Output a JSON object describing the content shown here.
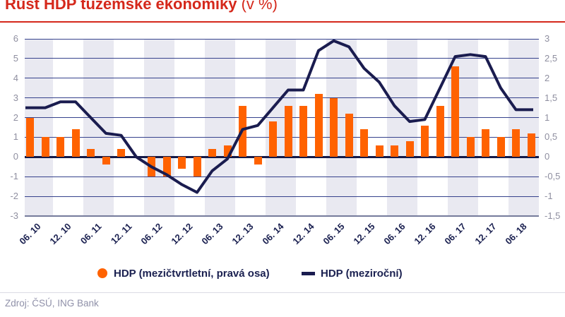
{
  "title": {
    "main": "Růst HDP tuzemské ekonomiky",
    "suffix": " (v %)"
  },
  "source_text": "Zdroj: ČSÚ, ING Bank",
  "legend": {
    "qoq_label": "HDP (mezičtvrtletní, pravá osa)",
    "yoy_label": "HDP (meziroční)"
  },
  "colors": {
    "title_red": "#d5281b",
    "bar_orange": "#ff6200",
    "line_navy": "#1a1c4f",
    "gridline": "#36428c",
    "zero_line": "#141947",
    "bottom_axis": "#757b9b",
    "stripe": "#e9e9f1",
    "tick_text": "#8f8fa0",
    "label_navy": "#1a2050",
    "source_text": "#9091a9",
    "separator": "#dcdce4"
  },
  "chart_data": {
    "type": "bar+line combo, dual axis",
    "periods": [
      "06.10",
      "09.10",
      "12.10",
      "03.11",
      "06.11",
      "09.11",
      "12.11",
      "03.12",
      "06.12",
      "09.12",
      "12.12",
      "03.13",
      "06.13",
      "09.13",
      "12.13",
      "03.14",
      "06.14",
      "09.14",
      "12.14",
      "03.15",
      "06.15",
      "09.15",
      "12.15",
      "03.16",
      "06.16",
      "09.16",
      "12.16",
      "03.17",
      "06.17",
      "09.17",
      "12.17",
      "03.18",
      "06.18",
      "09.18"
    ],
    "x_labels": [
      "06. 10",
      "12. 10",
      "06. 11",
      "12. 11",
      "06. 12",
      "12. 12",
      "06. 13",
      "12. 13",
      "06. 14",
      "12. 14",
      "06. 15",
      "12. 15",
      "06. 16",
      "12. 16",
      "06. 17",
      "12. 17",
      "06. 18"
    ],
    "x_label_every_n_points": 2,
    "series": [
      {
        "name": "HDP (mezičtvrtletní, pravá osa)",
        "type": "bar",
        "axis": "right",
        "values": [
          1.0,
          0.5,
          0.5,
          0.7,
          0.2,
          -0.2,
          0.2,
          0.0,
          -0.5,
          -0.5,
          -0.3,
          -0.5,
          0.2,
          0.3,
          1.3,
          -0.2,
          0.9,
          1.3,
          1.3,
          1.6,
          1.5,
          1.1,
          0.7,
          0.3,
          0.3,
          0.4,
          0.8,
          1.3,
          2.3,
          0.5,
          0.7,
          0.5,
          0.7,
          0.6
        ]
      },
      {
        "name": "HDP (meziroční)",
        "type": "line",
        "axis": "left",
        "values": [
          2.5,
          2.5,
          2.8,
          2.8,
          2.0,
          1.2,
          1.1,
          0.0,
          -0.5,
          -0.9,
          -1.4,
          -1.8,
          -0.7,
          -0.1,
          1.4,
          1.6,
          2.5,
          3.4,
          3.4,
          5.4,
          5.9,
          5.6,
          4.5,
          3.8,
          2.6,
          1.8,
          1.9,
          3.5,
          5.1,
          5.2,
          5.1,
          3.5,
          2.4,
          2.4
        ]
      }
    ],
    "left_axis": {
      "min": -3,
      "max": 6,
      "step": 1,
      "ticks": [
        "6",
        "5",
        "4",
        "3",
        "2",
        "1",
        "0",
        "-1",
        "-2",
        "-3"
      ]
    },
    "right_axis": {
      "min": -1.5,
      "max": 3,
      "step": 0.5,
      "ticks": [
        "3",
        "2,5",
        "2",
        "1,5",
        "1",
        "0,5",
        "0",
        "-0,5",
        "-1",
        "-1,5"
      ]
    },
    "grid": "horizontal gridlines + alternating vertical background bands (2 quarters wide)",
    "legend_position": "bottom center"
  }
}
